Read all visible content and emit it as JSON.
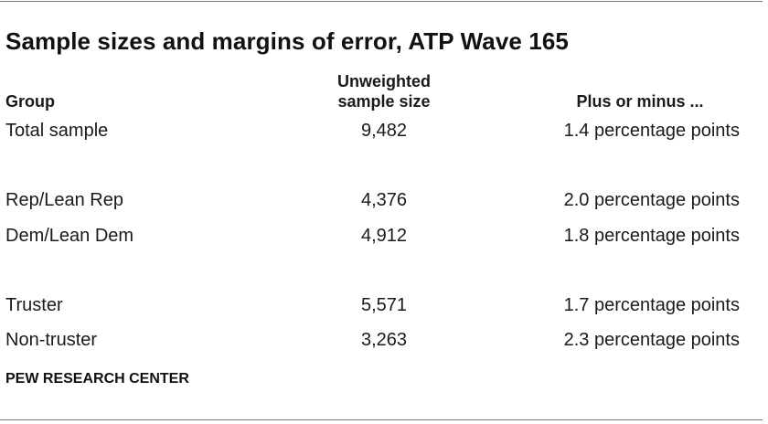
{
  "title": "Sample sizes and margins of error, ATP Wave 165",
  "headers": {
    "group": "Group",
    "sample_size_line1": "Unweighted",
    "sample_size_line2": "sample size",
    "moe": "Plus or minus ..."
  },
  "rows": [
    {
      "group": "Total sample",
      "size": "9,482",
      "moe": "1.4 percentage points"
    },
    {
      "group": "Rep/Lean Rep",
      "size": "4,376",
      "moe": "2.0 percentage points"
    },
    {
      "group": "Dem/Lean Dem",
      "size": "4,912",
      "moe": "1.8 percentage points"
    },
    {
      "group": "Truster",
      "size": "5,571",
      "moe": "1.7 percentage points"
    },
    {
      "group": "Non-truster",
      "size": "3,263",
      "moe": "2.3 percentage points"
    }
  ],
  "source": "PEW RESEARCH CENTER"
}
